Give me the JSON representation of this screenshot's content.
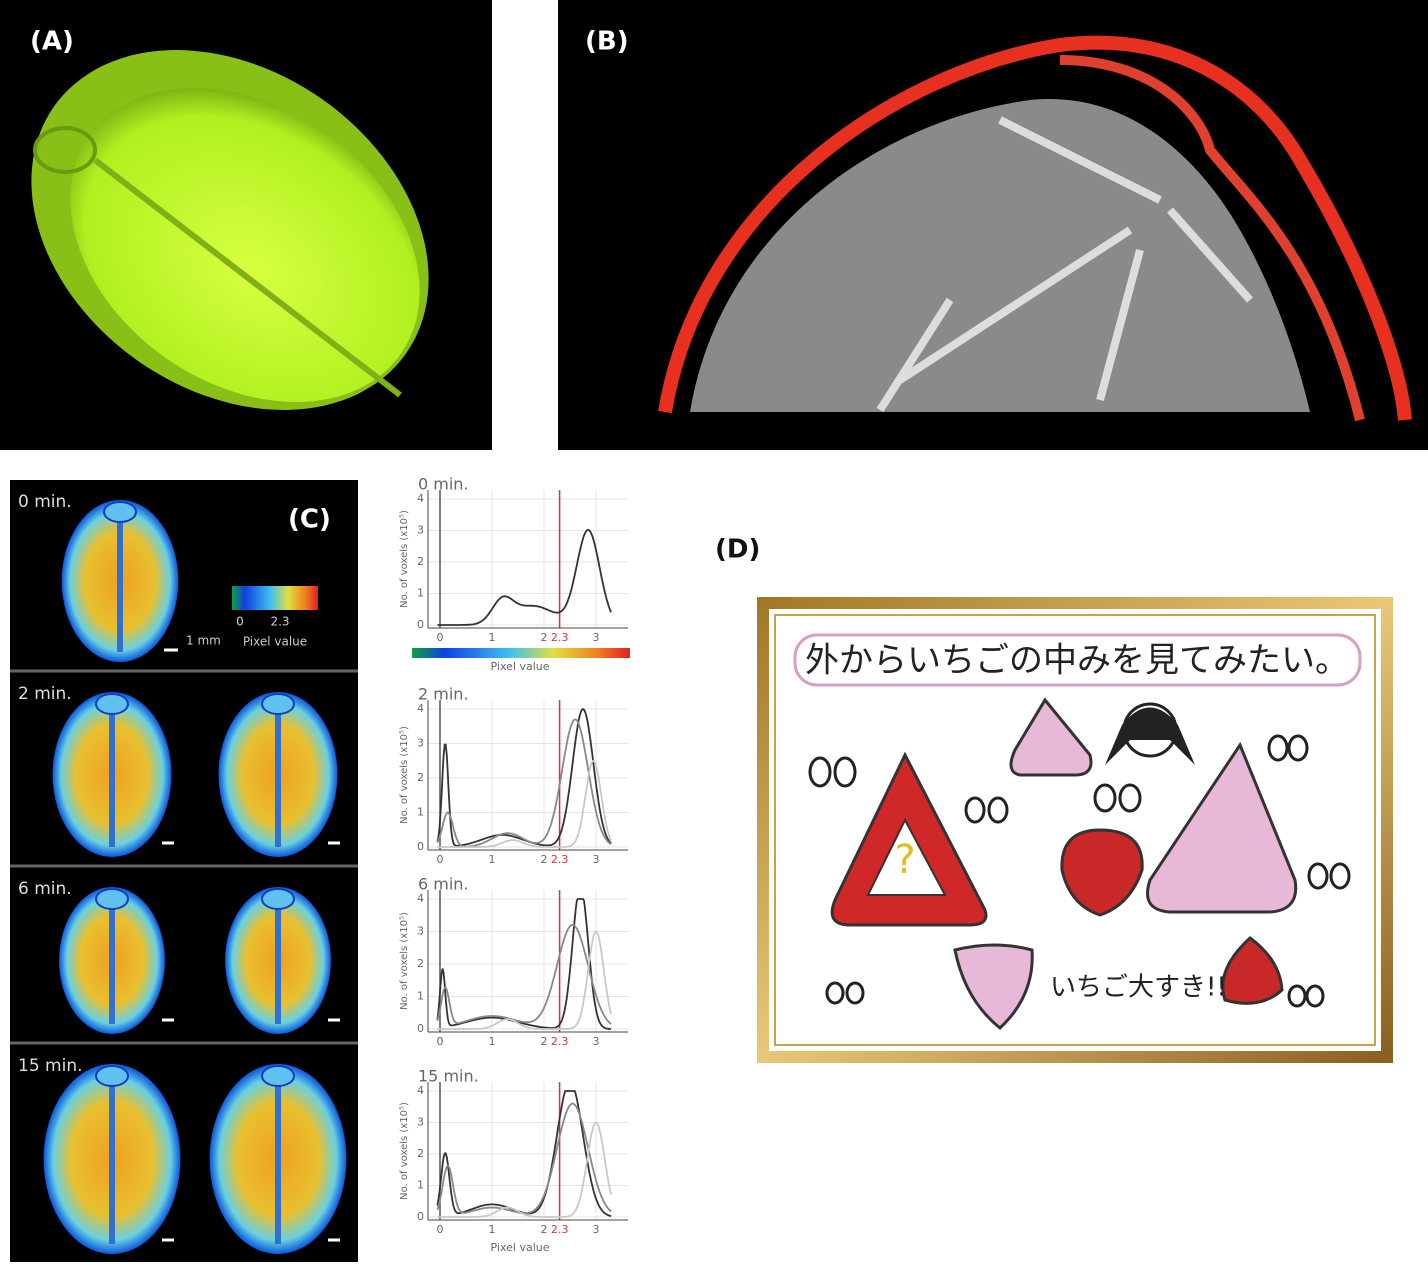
{
  "panels": {
    "a": {
      "label": "(A)"
    },
    "b": {
      "label": "(B)"
    },
    "c": {
      "label": "(C)",
      "time_labels": [
        "0 min.",
        "2 min.",
        "6 min.",
        "15 min."
      ],
      "scale_bar": "1 mm",
      "colorbar": {
        "ticks": [
          "0",
          "2.3"
        ],
        "title": "Pixel value"
      },
      "histogram": {
        "y_axis_title": "No. of voxels (x10⁵)",
        "y_ticks": [
          "0",
          "1",
          "2",
          "3",
          "4"
        ],
        "x_ticks": [
          "0",
          "1",
          "2",
          "2.3",
          "3"
        ],
        "x_axis_title": "Pixel value"
      }
    },
    "d": {
      "label": "(D)",
      "caption": "外からいちごの中みを見てみたい。",
      "exclaim": "いちご大すき!!"
    }
  }
}
